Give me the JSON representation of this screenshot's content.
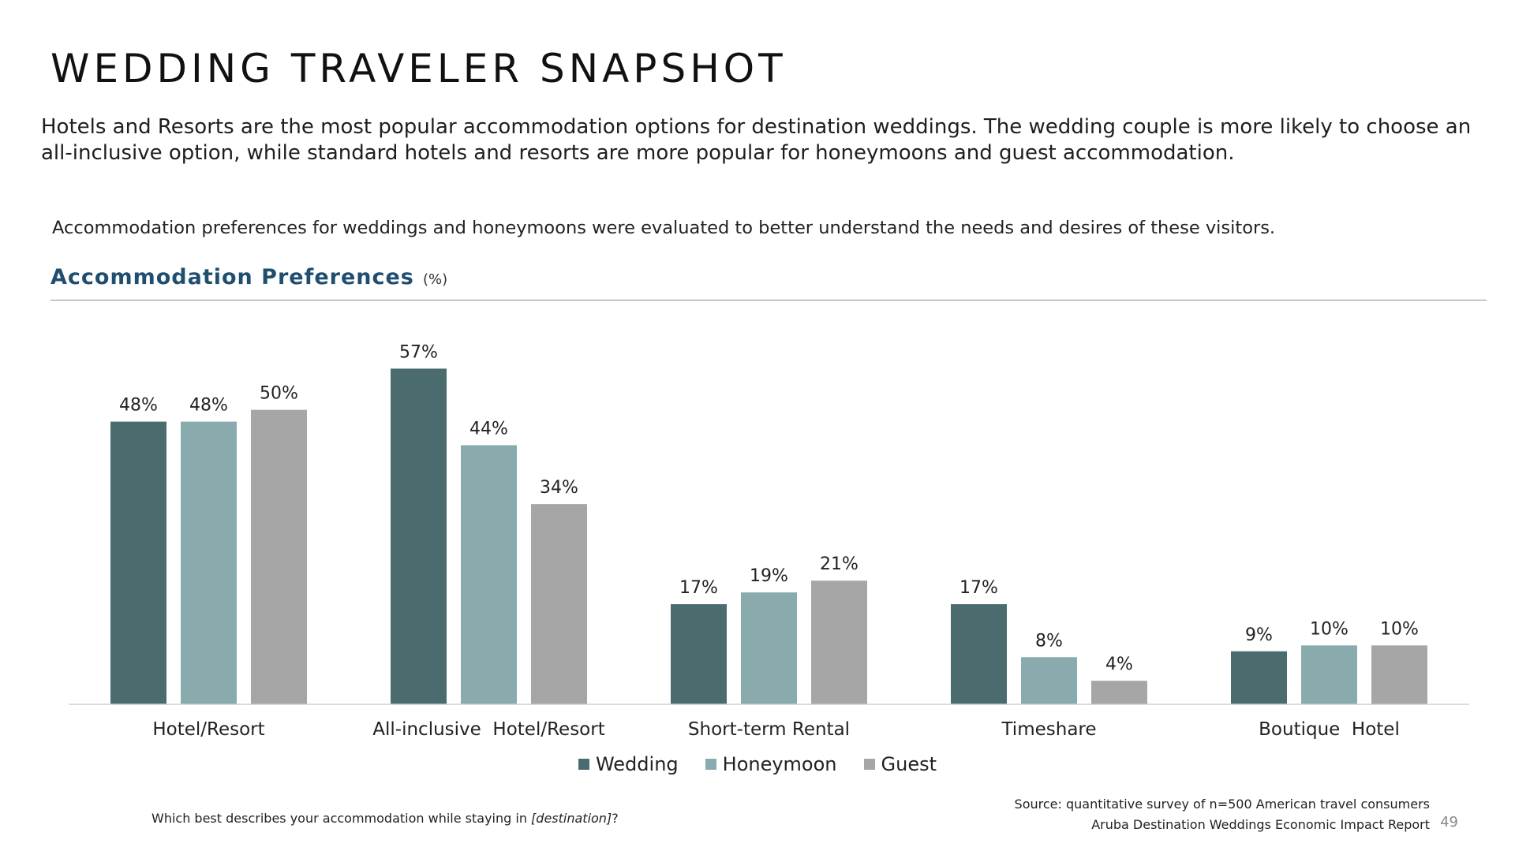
{
  "title": "WEDDING TRAVELER SNAPSHOT",
  "summary": "Hotels and Resorts are the most popular accommodation options for destination weddings. The wedding couple is more likely to choose an all-inclusive option, while standard hotels and resorts are more popular for honeymoons and guest accommodation.",
  "intro": "Accommodation preferences for weddings and honeymoons were evaluated to better understand the needs and desires of these visitors.",
  "section": {
    "title": "Accommodation Preferences",
    "unit": "(%)"
  },
  "question": {
    "prefix": "Which best describes your accommodation while staying in ",
    "emphasis": "[destination]",
    "suffix": "?"
  },
  "source": "Source: quantitative survey of n=500 American travel consumers",
  "report": "Aruba Destination Weddings Economic Impact Report",
  "page_number": "49",
  "chart_data": {
    "type": "bar",
    "categories": [
      "Hotel/Resort",
      "All-inclusive  Hotel/Resort",
      "Short-term Rental",
      "Timeshare",
      "Boutique  Hotel"
    ],
    "series": [
      {
        "name": "Wedding",
        "color": "#4b6c6e",
        "values": [
          48,
          57,
          17,
          17,
          9
        ]
      },
      {
        "name": "Honeymoon",
        "color": "#8aabad",
        "values": [
          48,
          44,
          19,
          8,
          10
        ]
      },
      {
        "name": "Guest",
        "color": "#a6a6a6",
        "values": [
          50,
          34,
          21,
          4,
          10
        ]
      }
    ],
    "value_suffix": "%",
    "ylim": [
      0,
      60
    ],
    "grid": false,
    "legend": "bottom"
  }
}
